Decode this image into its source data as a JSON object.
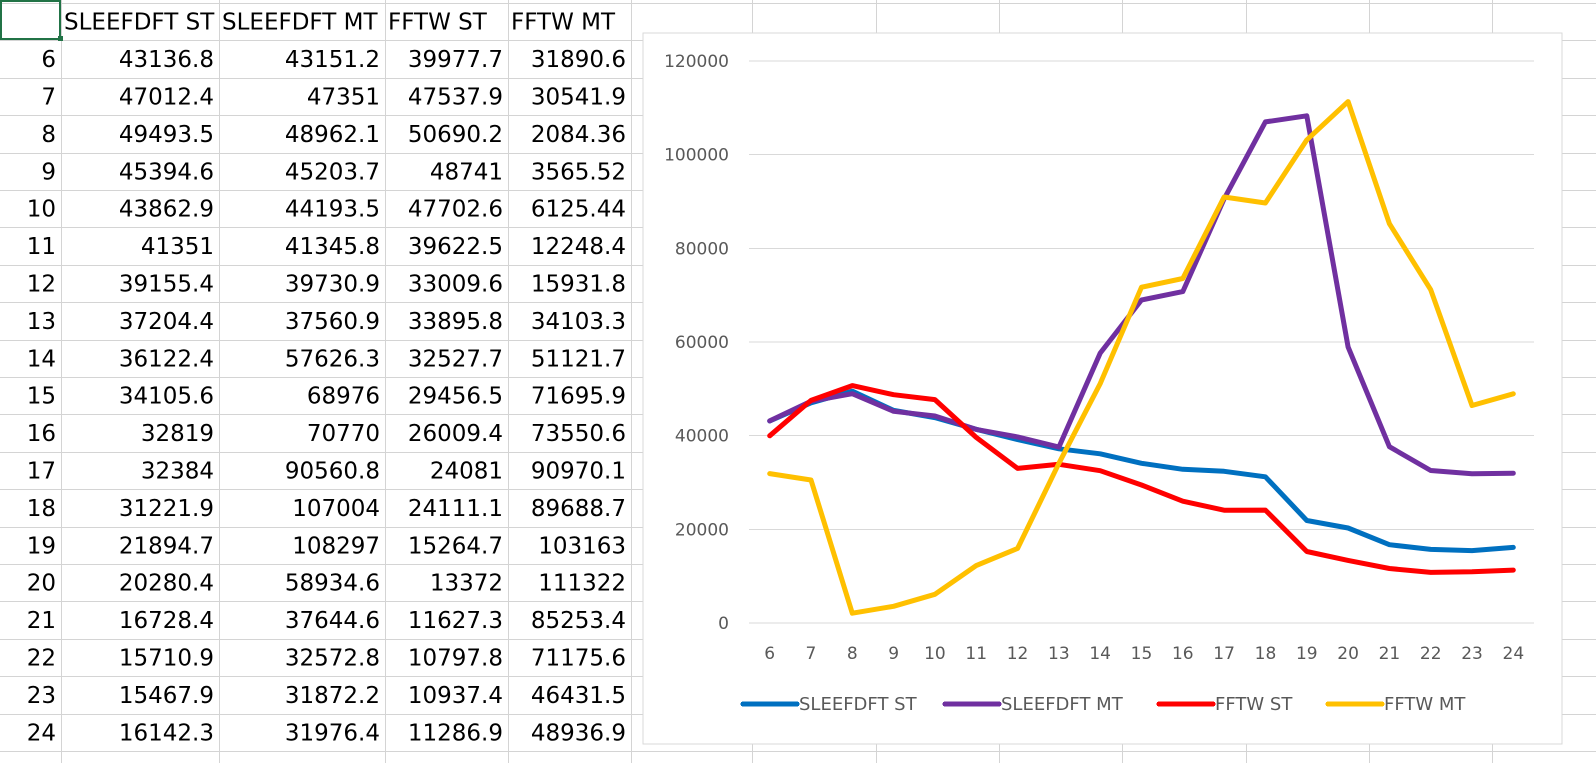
{
  "sheet": {
    "headers": [
      "",
      "SLEEFDFT ST",
      "SLEEFDFT MT",
      "FFTW ST",
      "FFTW MT"
    ],
    "rows": [
      [
        "6",
        "43136.8",
        "43151.2",
        "39977.7",
        "31890.6"
      ],
      [
        "7",
        "47012.4",
        "47351",
        "47537.9",
        "30541.9"
      ],
      [
        "8",
        "49493.5",
        "48962.1",
        "50690.2",
        "2084.36"
      ],
      [
        "9",
        "45394.6",
        "45203.7",
        "48741",
        "3565.52"
      ],
      [
        "10",
        "43862.9",
        "44193.5",
        "47702.6",
        "6125.44"
      ],
      [
        "11",
        "41351",
        "41345.8",
        "39622.5",
        "12248.4"
      ],
      [
        "12",
        "39155.4",
        "39730.9",
        "33009.6",
        "15931.8"
      ],
      [
        "13",
        "37204.4",
        "37560.9",
        "33895.8",
        "34103.3"
      ],
      [
        "14",
        "36122.4",
        "57626.3",
        "32527.7",
        "51121.7"
      ],
      [
        "15",
        "34105.6",
        "68976",
        "29456.5",
        "71695.9"
      ],
      [
        "16",
        "32819",
        "70770",
        "26009.4",
        "73550.6"
      ],
      [
        "17",
        "32384",
        "90560.8",
        "24081",
        "90970.1"
      ],
      [
        "18",
        "31221.9",
        "107004",
        "24111.1",
        "89688.7"
      ],
      [
        "19",
        "21894.7",
        "108297",
        "15264.7",
        "103163"
      ],
      [
        "20",
        "20280.4",
        "58934.6",
        "13372",
        "111322"
      ],
      [
        "21",
        "16728.4",
        "37644.6",
        "11627.3",
        "85253.4"
      ],
      [
        "22",
        "15710.9",
        "32572.8",
        "10797.8",
        "71175.6"
      ],
      [
        "23",
        "15467.9",
        "31872.2",
        "10937.4",
        "46431.5"
      ],
      [
        "24",
        "16142.3",
        "31976.4",
        "11286.9",
        "48936.9"
      ]
    ],
    "grid_color": "#d4d4d4",
    "selected_border_color": "#217346"
  },
  "chart_data": {
    "type": "line",
    "title": "",
    "xlabel": "",
    "ylabel": "",
    "categories": [
      "6",
      "7",
      "8",
      "9",
      "10",
      "11",
      "12",
      "13",
      "14",
      "15",
      "16",
      "17",
      "18",
      "19",
      "20",
      "21",
      "22",
      "23",
      "24"
    ],
    "series": [
      {
        "name": "SLEEFDFT ST",
        "color": "#0070c0",
        "values": [
          43136.8,
          47012.4,
          49493.5,
          45394.6,
          43862.9,
          41351,
          39155.4,
          37204.4,
          36122.4,
          34105.6,
          32819,
          32384,
          31221.9,
          21894.7,
          20280.4,
          16728.4,
          15710.9,
          15467.9,
          16142.3
        ]
      },
      {
        "name": "SLEEFDFT MT",
        "color": "#7030a0",
        "values": [
          43151.2,
          47351,
          48962.1,
          45203.7,
          44193.5,
          41345.8,
          39730.9,
          37560.9,
          57626.3,
          68976,
          70770,
          90560.8,
          107004,
          108297,
          58934.6,
          37644.6,
          32572.8,
          31872.2,
          31976.4
        ]
      },
      {
        "name": "FFTW ST",
        "color": "#ff0000",
        "values": [
          39977.7,
          47537.9,
          50690.2,
          48741,
          47702.6,
          39622.5,
          33009.6,
          33895.8,
          32527.7,
          29456.5,
          26009.4,
          24081,
          24111.1,
          15264.7,
          13372,
          11627.3,
          10797.8,
          10937.4,
          11286.9
        ]
      },
      {
        "name": "FFTW MT",
        "color": "#ffc000",
        "values": [
          31890.6,
          30541.9,
          2084.36,
          3565.52,
          6125.44,
          12248.4,
          15931.8,
          34103.3,
          51121.7,
          71695.9,
          73550.6,
          90970.1,
          89688.7,
          103163,
          111322,
          85253.4,
          71175.6,
          46431.5,
          48936.9
        ]
      }
    ],
    "y_ticks": [
      "0",
      "20000",
      "40000",
      "60000",
      "80000",
      "100000",
      "120000"
    ],
    "ylim": [
      0,
      120000
    ],
    "grid": true,
    "legend": "bottom"
  }
}
